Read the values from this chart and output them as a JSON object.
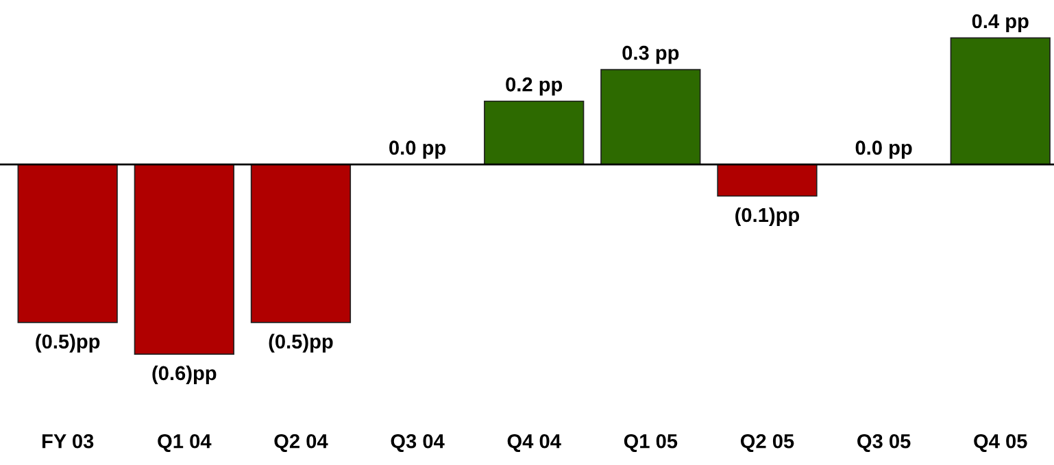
{
  "chart_data": {
    "type": "bar",
    "categories": [
      "FY 03",
      "Q1 04",
      "Q2 04",
      "Q3 04",
      "Q4 04",
      "Q1 05",
      "Q2 05",
      "Q3 05",
      "Q4 05"
    ],
    "values": [
      -0.5,
      -0.6,
      -0.5,
      0.0,
      0.2,
      0.3,
      -0.1,
      0.0,
      0.4
    ],
    "colors": [
      "#b00000",
      "#b00000",
      "#b00000",
      "#b00000",
      "#2d6a00",
      "#2d6a00",
      "#b00000",
      "#b00000",
      "#2d6a00"
    ],
    "value_labels": [
      "(0.5)pp",
      "(0.6)pp",
      "(0.5)pp",
      "0.0 pp",
      "0.2 pp",
      "0.3 pp",
      "(0.1)pp",
      "0.0 pp",
      "0.4 pp"
    ],
    "tick_labels": "x",
    "grid": false,
    "legend": false
  }
}
